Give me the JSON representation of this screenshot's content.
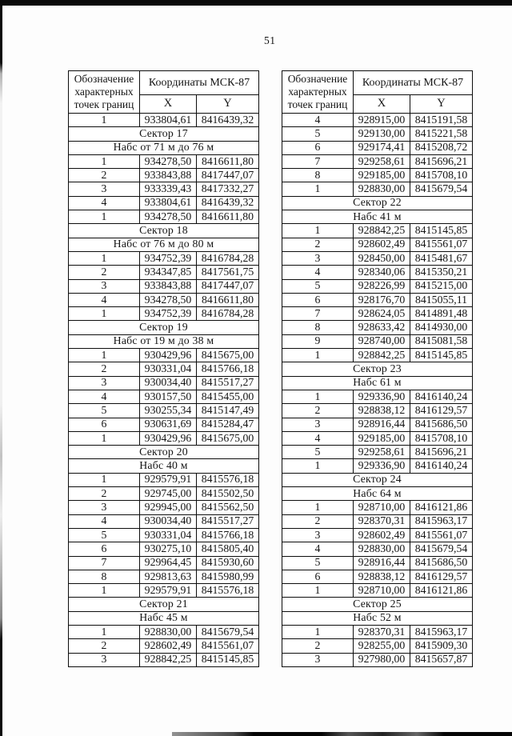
{
  "page": {
    "number": "51"
  },
  "tables": [
    {
      "name": "left",
      "header": {
        "designation": "Обозначение характерных точек границ",
        "coords": "Координаты МСК-87",
        "x": "X",
        "y": "Y"
      },
      "rows": [
        {
          "t": "d",
          "n": "1",
          "x": "933804,61",
          "y": "8416439,32"
        },
        {
          "t": "s",
          "label": "Сектор 17"
        },
        {
          "t": "s",
          "label": "Набс от 71 м до 76 м"
        },
        {
          "t": "d",
          "n": "1",
          "x": "934278,50",
          "y": "8416611,80"
        },
        {
          "t": "d",
          "n": "2",
          "x": "933843,88",
          "y": "8417447,07"
        },
        {
          "t": "d",
          "n": "3",
          "x": "933339,43",
          "y": "8417332,27"
        },
        {
          "t": "d",
          "n": "4",
          "x": "933804,61",
          "y": "8416439,32"
        },
        {
          "t": "d",
          "n": "1",
          "x": "934278,50",
          "y": "8416611,80"
        },
        {
          "t": "s",
          "label": "Сектор 18"
        },
        {
          "t": "s",
          "label": "Набс от 76 м до 80 м"
        },
        {
          "t": "d",
          "n": "1",
          "x": "934752,39",
          "y": "8416784,28"
        },
        {
          "t": "d",
          "n": "2",
          "x": "934347,85",
          "y": "8417561,75"
        },
        {
          "t": "d",
          "n": "3",
          "x": "933843,88",
          "y": "8417447,07"
        },
        {
          "t": "d",
          "n": "4",
          "x": "934278,50",
          "y": "8416611,80"
        },
        {
          "t": "d",
          "n": "1",
          "x": "934752,39",
          "y": "8416784,28"
        },
        {
          "t": "s",
          "label": "Сектор 19"
        },
        {
          "t": "s",
          "label": "Набс от 19 м до 38 м"
        },
        {
          "t": "d",
          "n": "1",
          "x": "930429,96",
          "y": "8415675,00"
        },
        {
          "t": "d",
          "n": "2",
          "x": "930331,04",
          "y": "8415766,18"
        },
        {
          "t": "d",
          "n": "3",
          "x": "930034,40",
          "y": "8415517,27"
        },
        {
          "t": "d",
          "n": "4",
          "x": "930157,50",
          "y": "8415455,00"
        },
        {
          "t": "d",
          "n": "5",
          "x": "930255,34",
          "y": "8415147,49"
        },
        {
          "t": "d",
          "n": "6",
          "x": "930631,69",
          "y": "8415284,47"
        },
        {
          "t": "d",
          "n": "1",
          "x": "930429,96",
          "y": "8415675,00"
        },
        {
          "t": "s",
          "label": "Сектор 20"
        },
        {
          "t": "s",
          "label": "Набс 40 м"
        },
        {
          "t": "d",
          "n": "1",
          "x": "929579,91",
          "y": "8415576,18"
        },
        {
          "t": "d",
          "n": "2",
          "x": "929745,00",
          "y": "8415502,50"
        },
        {
          "t": "d",
          "n": "3",
          "x": "929945,00",
          "y": "8415562,50"
        },
        {
          "t": "d",
          "n": "4",
          "x": "930034,40",
          "y": "8415517,27"
        },
        {
          "t": "d",
          "n": "5",
          "x": "930331,04",
          "y": "8415766,18"
        },
        {
          "t": "d",
          "n": "6",
          "x": "930275,10",
          "y": "8415805,40"
        },
        {
          "t": "d",
          "n": "7",
          "x": "929964,45",
          "y": "8415930,60"
        },
        {
          "t": "d",
          "n": "8",
          "x": "929813,63",
          "y": "8415980,99"
        },
        {
          "t": "d",
          "n": "1",
          "x": "929579,91",
          "y": "8415576,18"
        },
        {
          "t": "s",
          "label": "Сектор 21"
        },
        {
          "t": "s",
          "label": "Набс 45 м"
        },
        {
          "t": "d",
          "n": "1",
          "x": "928830,00",
          "y": "8415679,54"
        },
        {
          "t": "d",
          "n": "2",
          "x": "928602,49",
          "y": "8415561,07"
        },
        {
          "t": "d",
          "n": "3",
          "x": "928842,25",
          "y": "8415145,85"
        }
      ]
    },
    {
      "name": "right",
      "header": {
        "designation": "Обозначение характерных точек границ",
        "coords": "Координаты МСК-87",
        "x": "X",
        "y": "Y"
      },
      "rows": [
        {
          "t": "d",
          "n": "4",
          "x": "928915,00",
          "y": "8415191,58"
        },
        {
          "t": "d",
          "n": "5",
          "x": "929130,00",
          "y": "8415221,58"
        },
        {
          "t": "d",
          "n": "6",
          "x": "929174,41",
          "y": "8415208,72"
        },
        {
          "t": "d",
          "n": "7",
          "x": "929258,61",
          "y": "8415696,21"
        },
        {
          "t": "d",
          "n": "8",
          "x": "929185,00",
          "y": "8415708,10"
        },
        {
          "t": "d",
          "n": "1",
          "x": "928830,00",
          "y": "8415679,54"
        },
        {
          "t": "s",
          "label": "Сектор 22"
        },
        {
          "t": "s",
          "label": "Набс 41 м"
        },
        {
          "t": "d",
          "n": "1",
          "x": "928842,25",
          "y": "8415145,85"
        },
        {
          "t": "d",
          "n": "2",
          "x": "928602,49",
          "y": "8415561,07"
        },
        {
          "t": "d",
          "n": "3",
          "x": "928450,00",
          "y": "8415481,67"
        },
        {
          "t": "d",
          "n": "4",
          "x": "928340,06",
          "y": "8415350,21"
        },
        {
          "t": "d",
          "n": "5",
          "x": "928226,99",
          "y": "8415215,00"
        },
        {
          "t": "d",
          "n": "6",
          "x": "928176,70",
          "y": "8415055,11"
        },
        {
          "t": "d",
          "n": "7",
          "x": "928624,05",
          "y": "8414891,48"
        },
        {
          "t": "d",
          "n": "8",
          "x": "928633,42",
          "y": "8414930,00"
        },
        {
          "t": "d",
          "n": "9",
          "x": "928740,00",
          "y": "8415081,58"
        },
        {
          "t": "d",
          "n": "1",
          "x": "928842,25",
          "y": "8415145,85"
        },
        {
          "t": "s",
          "label": "Сектор 23"
        },
        {
          "t": "s",
          "label": "Набс 61 м"
        },
        {
          "t": "d",
          "n": "1",
          "x": "929336,90",
          "y": "8416140,24"
        },
        {
          "t": "d",
          "n": "2",
          "x": "928838,12",
          "y": "8416129,57"
        },
        {
          "t": "d",
          "n": "3",
          "x": "928916,44",
          "y": "8415686,50"
        },
        {
          "t": "d",
          "n": "4",
          "x": "929185,00",
          "y": "8415708,10"
        },
        {
          "t": "d",
          "n": "5",
          "x": "929258,61",
          "y": "8415696,21"
        },
        {
          "t": "d",
          "n": "1",
          "x": "929336,90",
          "y": "8416140,24"
        },
        {
          "t": "s",
          "label": "Сектор 24"
        },
        {
          "t": "s",
          "label": "Набс 64 м"
        },
        {
          "t": "d",
          "n": "1",
          "x": "928710,00",
          "y": "8416121,86"
        },
        {
          "t": "d",
          "n": "2",
          "x": "928370,31",
          "y": "8415963,17"
        },
        {
          "t": "d",
          "n": "3",
          "x": "928602,49",
          "y": "8415561,07"
        },
        {
          "t": "d",
          "n": "4",
          "x": "928830,00",
          "y": "8415679,54"
        },
        {
          "t": "d",
          "n": "5",
          "x": "928916,44",
          "y": "8415686,50"
        },
        {
          "t": "d",
          "n": "6",
          "x": "928838,12",
          "y": "8416129,57"
        },
        {
          "t": "d",
          "n": "1",
          "x": "928710,00",
          "y": "8416121,86"
        },
        {
          "t": "s",
          "label": "Сектор 25"
        },
        {
          "t": "s",
          "label": "Набс 52 м"
        },
        {
          "t": "d",
          "n": "1",
          "x": "928370,31",
          "y": "8415963,17"
        },
        {
          "t": "d",
          "n": "2",
          "x": "928255,00",
          "y": "8415909,30"
        },
        {
          "t": "d",
          "n": "3",
          "x": "927980,00",
          "y": "8415657,87"
        }
      ]
    }
  ]
}
